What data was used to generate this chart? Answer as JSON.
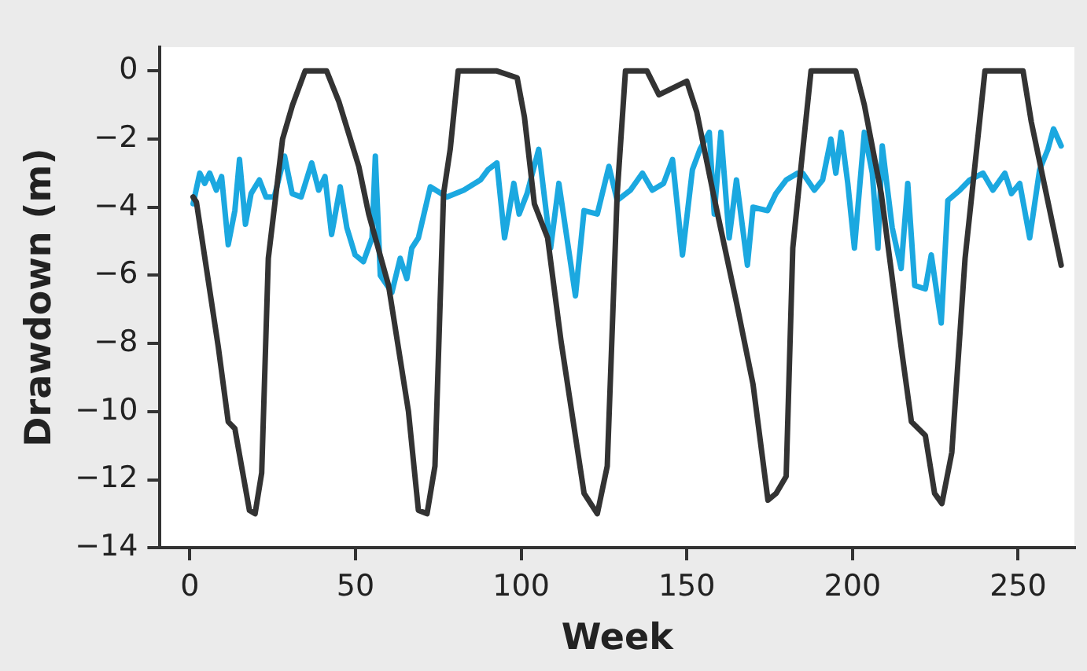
{
  "chart_data": {
    "type": "line",
    "xlabel": "Week",
    "ylabel": "Drawdown (m)",
    "xlim": [
      -9,
      267
    ],
    "ylim": [
      -14,
      0.7
    ],
    "xticks": [
      0,
      50,
      100,
      150,
      200,
      250
    ],
    "yticks": [
      {
        "value": -14,
        "label": "−14"
      },
      {
        "value": -12,
        "label": "−12"
      },
      {
        "value": -10,
        "label": "−10"
      },
      {
        "value": -8,
        "label": "−8"
      },
      {
        "value": -6,
        "label": "−6"
      },
      {
        "value": -4,
        "label": "−4"
      },
      {
        "value": -2,
        "label": "−2"
      },
      0
    ],
    "grid": false,
    "legend": false,
    "marker": "none",
    "line_style": "solid",
    "series": [
      {
        "color": "#333333",
        "x": [
          1,
          2,
          8.6,
          11.6,
          13.6,
          18,
          19.7,
          21.7,
          23.7,
          28,
          31,
          34.8,
          41.3,
          45,
          51,
          54,
          60,
          66,
          69,
          71.6,
          74,
          76.6,
          78.6,
          81,
          92.7,
          98.8,
          101,
          104,
          108,
          112,
          119,
          123,
          126,
          129,
          131.5,
          138,
          141.6,
          150,
          153,
          158,
          165,
          170,
          174.5,
          177,
          180,
          182,
          184.5,
          187.5,
          201,
          203.6,
          208.7,
          214.7,
          217.8,
          222,
          224.8,
          227,
          230,
          234,
          236.4,
          240,
          251.5,
          254,
          263
        ],
        "values": [
          -3.7,
          -3.85,
          -8.1,
          -10.3,
          -10.5,
          -12.9,
          -13,
          -11.8,
          -5.5,
          -2,
          -1,
          0,
          0,
          -0.9,
          -2.8,
          -4.2,
          -6.3,
          -10,
          -12.9,
          -13,
          -11.6,
          -3.6,
          -2.3,
          0,
          0,
          -0.2,
          -1.35,
          -3.9,
          -4.9,
          -7.9,
          -12.4,
          -13,
          -11.6,
          -3.6,
          0,
          0,
          -0.7,
          -0.3,
          -1.2,
          -3.6,
          -6.8,
          -9.2,
          -12.6,
          -12.4,
          -11.9,
          -5.2,
          -2.8,
          0,
          0,
          -1,
          -3.6,
          -8.1,
          -10.3,
          -10.7,
          -12.4,
          -12.7,
          -11.2,
          -5.5,
          -3.3,
          0,
          0,
          -1.5,
          -5.7
        ]
      },
      {
        "color": "#1ba8e0",
        "x": [
          1,
          3,
          4.5,
          6,
          8,
          9.6,
          11.6,
          13.6,
          15,
          16.8,
          18.5,
          21,
          23,
          25.5,
          28.6,
          30.9,
          33.6,
          36.8,
          38.9,
          40.8,
          42.8,
          45.4,
          47.4,
          49.9,
          52.4,
          55,
          56,
          57.5,
          61,
          63.5,
          65.5,
          67,
          69,
          72.6,
          77.6,
          82.7,
          87.7,
          90,
          92.7,
          95,
          97.8,
          99.4,
          101.8,
          105.3,
          108.9,
          111.4,
          116.4,
          119,
          123,
          126.5,
          129,
          133,
          136.6,
          139.6,
          143,
          145.7,
          148.7,
          151.7,
          154,
          156.8,
          158.3,
          160.3,
          162.8,
          165,
          168.3,
          170,
          174.4,
          176.9,
          180,
          183.5,
          185,
          188.5,
          191,
          193.5,
          195,
          196.6,
          198.6,
          200.6,
          203.6,
          206,
          207.7,
          209,
          212,
          214.7,
          216.7,
          218.8,
          222,
          223.8,
          226.8,
          228.8,
          232.4,
          235.4,
          239.4,
          242.4,
          246,
          248,
          250.5,
          253.5,
          256.5,
          259,
          260.7,
          263
        ],
        "values": [
          -3.9,
          -3,
          -3.3,
          -3,
          -3.5,
          -3.1,
          -5.1,
          -4.1,
          -2.6,
          -4.5,
          -3.6,
          -3.2,
          -3.7,
          -3.7,
          -2.5,
          -3.6,
          -3.7,
          -2.7,
          -3.5,
          -3.1,
          -4.8,
          -3.4,
          -4.6,
          -5.4,
          -5.6,
          -4.9,
          -2.5,
          -6,
          -6.5,
          -5.5,
          -6.1,
          -5.2,
          -4.9,
          -3.4,
          -3.7,
          -3.5,
          -3.2,
          -2.9,
          -2.7,
          -4.9,
          -3.3,
          -4.2,
          -3.6,
          -2.3,
          -5.2,
          -3.3,
          -6.6,
          -4.1,
          -4.2,
          -2.8,
          -3.8,
          -3.5,
          -3,
          -3.5,
          -3.3,
          -2.6,
          -5.4,
          -2.9,
          -2.3,
          -1.8,
          -4.2,
          -1.8,
          -4.9,
          -3.2,
          -5.7,
          -4,
          -4.1,
          -3.6,
          -3.2,
          -3,
          -3,
          -3.5,
          -3.2,
          -2,
          -3,
          -1.8,
          -3.3,
          -5.2,
          -1.8,
          -3,
          -5.2,
          -2.2,
          -4.6,
          -5.8,
          -3.3,
          -6.3,
          -6.4,
          -5.4,
          -7.4,
          -3.8,
          -3.5,
          -3.2,
          -3,
          -3.5,
          -3,
          -3.6,
          -3.3,
          -4.9,
          -2.9,
          -2.3,
          -1.7,
          -2.2
        ]
      }
    ]
  }
}
